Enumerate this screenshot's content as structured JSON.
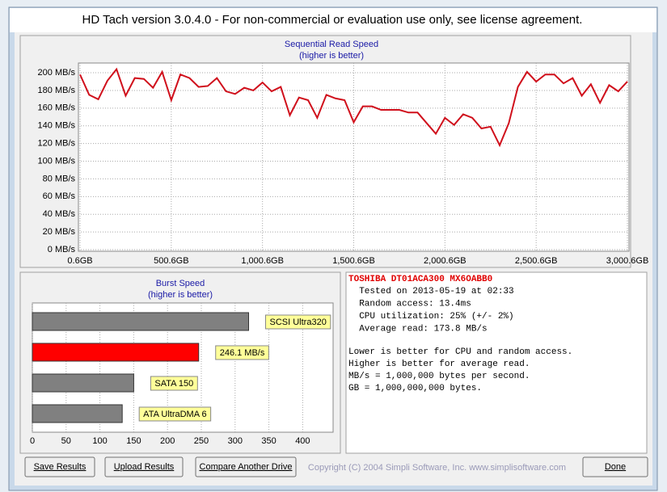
{
  "window_title": "HD Tach version 3.0.4.0  - For non-commercial or evaluation use only, see license agreement.",
  "chart_data": [
    {
      "type": "line",
      "title": "Sequential Read Speed",
      "subtitle": "(higher is better)",
      "color": "#d0101c",
      "grid": true,
      "x": [
        0.6,
        50.6,
        100.6,
        150.6,
        200.6,
        250.6,
        300.6,
        350.6,
        400.6,
        450.6,
        500.6,
        550.6,
        600.6,
        650.6,
        700.6,
        750.6,
        800.6,
        850.6,
        900.6,
        950.6,
        1000.6,
        1050.6,
        1100.6,
        1150.6,
        1200.6,
        1250.6,
        1300.6,
        1350.6,
        1400.6,
        1450.6,
        1500.6,
        1550.6,
        1600.6,
        1650.6,
        1700.6,
        1750.6,
        1800.6,
        1850.6,
        1900.6,
        1950.6,
        2000.6,
        2050.6,
        2100.6,
        2150.6,
        2200.6,
        2250.6,
        2300.6,
        2350.6,
        2400.6,
        2450.6,
        2500.6,
        2550.6,
        2600.6,
        2650.6,
        2700.6,
        2750.6,
        2800.6,
        2850.6,
        2900.6,
        2950.6,
        3000.6
      ],
      "values": [
        198,
        175,
        170,
        191,
        204,
        174,
        194,
        193,
        183,
        201,
        169,
        198,
        194,
        184,
        185,
        194,
        179,
        176,
        183,
        180,
        189,
        179,
        184,
        152,
        172,
        169,
        149,
        175,
        171,
        169,
        144,
        162,
        162,
        158,
        158,
        158,
        155,
        155,
        143,
        131,
        149,
        141,
        153,
        149,
        137,
        139,
        118,
        143,
        184,
        201,
        190,
        198,
        198,
        188,
        194,
        174,
        187,
        166,
        186,
        179,
        190
      ],
      "xlim": [
        0.6,
        3000.6
      ],
      "ylim": [
        0,
        211
      ],
      "xticks": [
        {
          "value": 0.6,
          "label": "0.6GB"
        },
        {
          "value": 500.6,
          "label": "500.6GB"
        },
        {
          "value": 1000.6,
          "label": "1,000.6GB"
        },
        {
          "value": 1500.6,
          "label": "1,500.6GB"
        },
        {
          "value": 2000.6,
          "label": "2,000.6GB"
        },
        {
          "value": 2500.6,
          "label": "2,500.6GB"
        },
        {
          "value": 3000.6,
          "label": "3,000.6GB"
        }
      ],
      "yticks": [
        {
          "value": 0,
          "label": "0 MB/s"
        },
        {
          "value": 20,
          "label": "20 MB/s"
        },
        {
          "value": 40,
          "label": "40 MB/s"
        },
        {
          "value": 60,
          "label": "60 MB/s"
        },
        {
          "value": 80,
          "label": "80 MB/s"
        },
        {
          "value": 100,
          "label": "100 MB/s"
        },
        {
          "value": 120,
          "label": "120 MB/s"
        },
        {
          "value": 140,
          "label": "140 MB/s"
        },
        {
          "value": 160,
          "label": "160 MB/s"
        },
        {
          "value": 180,
          "label": "180 MB/s"
        },
        {
          "value": 200,
          "label": "200 MB/s"
        }
      ]
    },
    {
      "type": "hbar",
      "title": "Burst Speed",
      "subtitle": "(higher is better)",
      "grid": true,
      "categories": [
        "SCSI Ultra320",
        "246.1 MB/s",
        "SATA 150",
        "ATA UltraDMA 6"
      ],
      "values": [
        320,
        246.1,
        150,
        133
      ],
      "colors": [
        "#808080",
        "#ff0000",
        "#808080",
        "#808080"
      ],
      "xlim": [
        0,
        445
      ],
      "xticks": [
        0,
        50,
        100,
        150,
        200,
        250,
        300,
        350,
        400
      ]
    }
  ],
  "info": {
    "drive": "TOSHIBA DT01ACA300 MX6OABB0",
    "lines": [
      "  Tested on 2013-05-19 at 02:33",
      "  Random access: 13.4ms",
      "  CPU utilization: 25% (+/- 2%)",
      "  Average read: 173.8 MB/s"
    ],
    "notes": [
      "Lower is better for CPU and random access.",
      "Higher is better for average read.",
      "MB/s = 1,000,000 bytes per second.",
      "GB = 1,000,000,000 bytes."
    ]
  },
  "buttons": [
    "Save Results",
    "Upload Results",
    "Compare Another Drive",
    "Done"
  ],
  "copyright": "Copyright (C) 2004 Simpli Software, Inc. www.simplisoftware.com"
}
